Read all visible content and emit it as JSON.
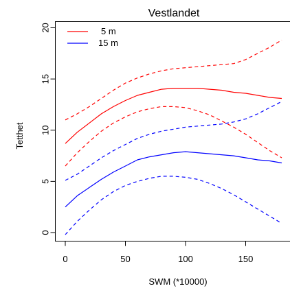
{
  "chart_data": {
    "type": "line",
    "title": "Vestlandet",
    "xlabel": "SWM (*10000)",
    "ylabel": "Tetthet",
    "xlim": [
      0,
      180
    ],
    "ylim": [
      0,
      20
    ],
    "xticks": [
      0,
      50,
      100,
      150
    ],
    "yticks": [
      0,
      5,
      10,
      15,
      20
    ],
    "xtick_labels": [
      "0",
      "50",
      "100",
      "150"
    ],
    "ytick_labels": [
      "0",
      "5",
      "10",
      "15",
      "20"
    ],
    "grid": false,
    "legend": {
      "position": "top-left",
      "entries": [
        {
          "label": "5 m",
          "color": "#ff0000"
        },
        {
          "label": "15 m",
          "color": "#0000ff"
        }
      ]
    },
    "series": [
      {
        "name": "5 m",
        "color": "#ff0000",
        "style": "solid",
        "x": [
          0,
          10,
          20,
          30,
          40,
          50,
          60,
          70,
          80,
          90,
          100,
          110,
          120,
          130,
          140,
          150,
          160,
          170,
          180
        ],
        "y": [
          8.7,
          9.8,
          10.7,
          11.6,
          12.3,
          12.9,
          13.4,
          13.7,
          14.0,
          14.1,
          14.1,
          14.1,
          14.0,
          13.9,
          13.7,
          13.6,
          13.4,
          13.2,
          13.1
        ]
      },
      {
        "name": "5 m upper",
        "color": "#ff0000",
        "style": "dashed",
        "x": [
          0,
          10,
          20,
          30,
          40,
          50,
          60,
          70,
          80,
          90,
          100,
          110,
          120,
          130,
          140,
          150,
          160,
          170,
          180
        ],
        "y": [
          11.0,
          11.6,
          12.3,
          13.1,
          13.9,
          14.6,
          15.1,
          15.5,
          15.8,
          16.0,
          16.1,
          16.2,
          16.3,
          16.4,
          16.5,
          16.9,
          17.5,
          18.1,
          18.8
        ]
      },
      {
        "name": "5 m lower",
        "color": "#ff0000",
        "style": "dashed",
        "x": [
          0,
          10,
          20,
          30,
          40,
          50,
          60,
          70,
          80,
          90,
          100,
          110,
          120,
          130,
          140,
          150,
          160,
          170,
          180
        ],
        "y": [
          6.5,
          7.8,
          8.9,
          9.9,
          10.7,
          11.3,
          11.8,
          12.1,
          12.3,
          12.3,
          12.2,
          11.9,
          11.5,
          10.9,
          10.3,
          9.6,
          8.8,
          8.0,
          7.3
        ]
      },
      {
        "name": "15 m",
        "color": "#0000ff",
        "style": "solid",
        "x": [
          0,
          10,
          20,
          30,
          40,
          50,
          60,
          70,
          80,
          90,
          100,
          110,
          120,
          130,
          140,
          150,
          160,
          170,
          180
        ],
        "y": [
          2.5,
          3.6,
          4.4,
          5.2,
          5.9,
          6.5,
          7.1,
          7.4,
          7.6,
          7.8,
          7.9,
          7.8,
          7.7,
          7.6,
          7.5,
          7.3,
          7.1,
          7.0,
          6.8
        ]
      },
      {
        "name": "15 m upper",
        "color": "#0000ff",
        "style": "dashed",
        "x": [
          0,
          10,
          20,
          30,
          40,
          50,
          60,
          70,
          80,
          90,
          100,
          110,
          120,
          130,
          140,
          150,
          160,
          170,
          180
        ],
        "y": [
          5.1,
          5.7,
          6.5,
          7.3,
          8.0,
          8.6,
          9.2,
          9.6,
          9.9,
          10.1,
          10.3,
          10.4,
          10.5,
          10.6,
          10.8,
          11.1,
          11.6,
          12.2,
          12.8
        ]
      },
      {
        "name": "15 m lower",
        "color": "#0000ff",
        "style": "dashed",
        "x": [
          0,
          10,
          20,
          30,
          40,
          50,
          60,
          70,
          80,
          90,
          100,
          110,
          120,
          130,
          140,
          150,
          160,
          170,
          180
        ],
        "y": [
          -0.2,
          1.1,
          2.2,
          3.2,
          4.0,
          4.6,
          5.0,
          5.3,
          5.5,
          5.5,
          5.4,
          5.2,
          4.8,
          4.3,
          3.7,
          3.0,
          2.3,
          1.6,
          0.9
        ]
      }
    ]
  }
}
